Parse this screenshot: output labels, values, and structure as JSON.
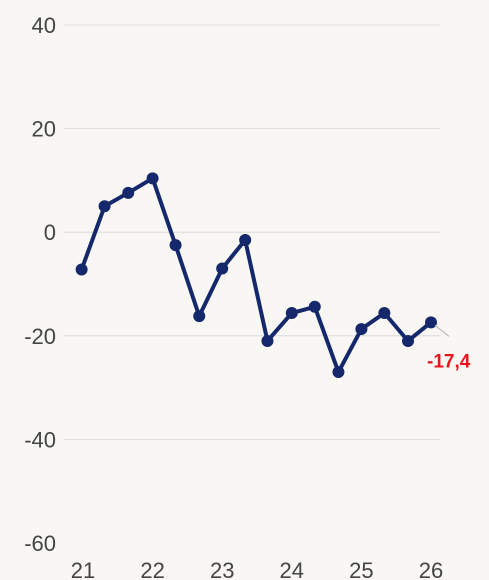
{
  "chart_data": {
    "type": "line",
    "title": "",
    "xlabel": "",
    "ylabel": "",
    "ylim": [
      -60,
      40
    ],
    "xlim": [
      21,
      26
    ],
    "y_ticks": [
      40,
      20,
      0,
      -20,
      -40,
      -60
    ],
    "y_tick_labels": [
      "40",
      "20",
      "0",
      "-20",
      "-40",
      "-60"
    ],
    "x_ticks": [
      21,
      22,
      23,
      24,
      25,
      26
    ],
    "x_tick_labels": [
      "21",
      "22",
      "23",
      "24",
      "25",
      "26"
    ],
    "grid": true,
    "legend": "none",
    "series": [
      {
        "color": "#14286b",
        "points": [
          {
            "x": 20.98,
            "y": -7.2
          },
          {
            "x": 21.31,
            "y": 5.0
          },
          {
            "x": 21.65,
            "y": 7.6
          },
          {
            "x": 22.0,
            "y": 10.4
          },
          {
            "x": 22.33,
            "y": -2.5
          },
          {
            "x": 22.67,
            "y": -16.2
          },
          {
            "x": 23.0,
            "y": -7.0
          },
          {
            "x": 23.33,
            "y": -1.5
          },
          {
            "x": 23.65,
            "y": -21.0
          },
          {
            "x": 24.0,
            "y": -15.6
          },
          {
            "x": 24.33,
            "y": -14.4
          },
          {
            "x": 24.67,
            "y": -27.0
          },
          {
            "x": 25.0,
            "y": -18.7
          },
          {
            "x": 25.33,
            "y": -15.6
          },
          {
            "x": 25.67,
            "y": -21.0
          },
          {
            "x": 26.0,
            "y": -17.4
          }
        ]
      }
    ],
    "annotation": {
      "text": "-17,4",
      "color": "#e8141c"
    }
  }
}
